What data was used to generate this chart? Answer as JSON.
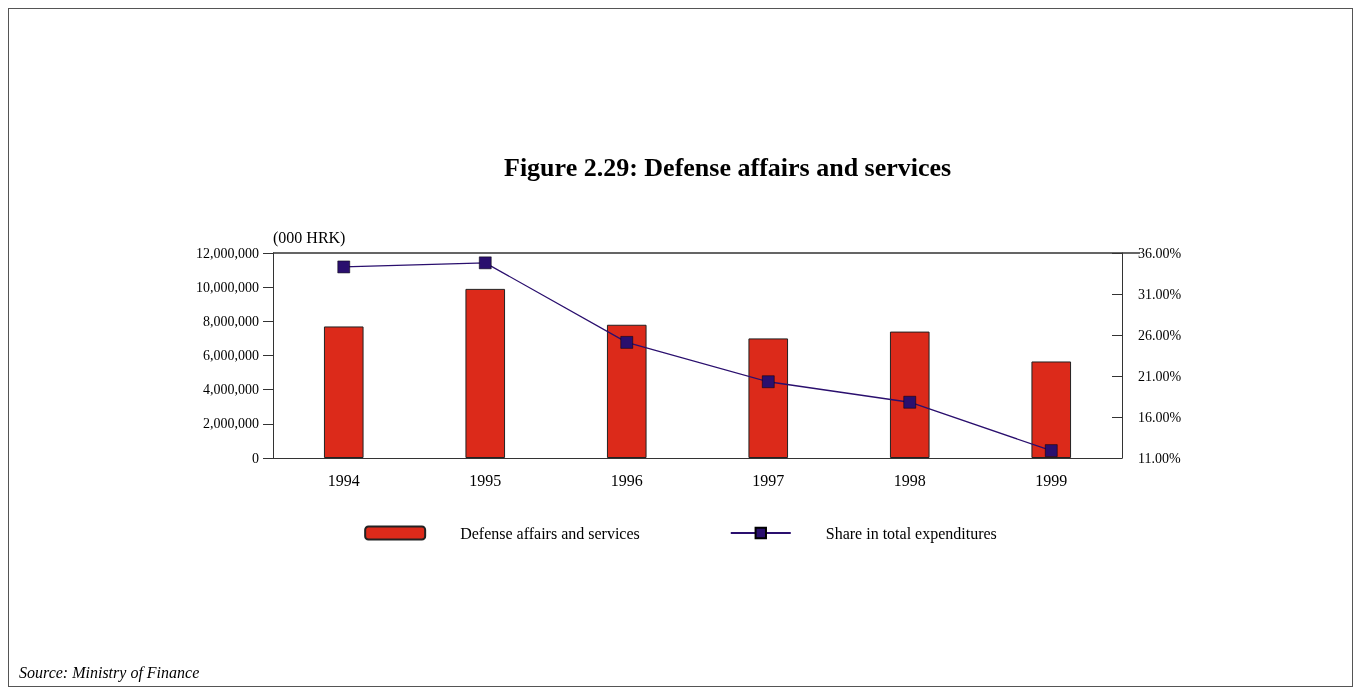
{
  "chart_data": {
    "type": "bar",
    "title": "Figure 2.29: Defense affairs and services",
    "ylabel": "(000 HRK)",
    "categories": [
      "1994",
      "1995",
      "1996",
      "1997",
      "1998",
      "1999"
    ],
    "series": [
      {
        "name": "Defense affairs and services",
        "color": "#dc2a1a",
        "values": [
          7700000,
          9900000,
          7800000,
          7000000,
          7400000,
          5650000
        ]
      },
      {
        "name": "Share in total expenditures",
        "type": "line",
        "axis": "y2",
        "color": "#2a0f6e",
        "marker": "square",
        "values": [
          34.3,
          34.8,
          25.1,
          20.3,
          17.8,
          11.9
        ]
      }
    ],
    "ylim": [
      0,
      12000000
    ],
    "yticks": [
      {
        "value": 0,
        "label": "0"
      },
      {
        "value": 2000000,
        "label": "2,000,000"
      },
      {
        "value": 4000000,
        "label": "4,000,000"
      },
      {
        "value": 6000000,
        "label": "6,000,000"
      },
      {
        "value": 8000000,
        "label": "8,000,000"
      },
      {
        "value": 10000000,
        "label": "10,000,000"
      },
      {
        "value": 12000000,
        "label": "12,000,000"
      }
    ],
    "y2lim": [
      11,
      36
    ],
    "y2ticks": [
      {
        "value": 11,
        "label": "11.00%"
      },
      {
        "value": 16,
        "label": "16.00%"
      },
      {
        "value": 21,
        "label": "21.00%"
      },
      {
        "value": 26,
        "label": "26.00%"
      },
      {
        "value": 31,
        "label": "31.00%"
      },
      {
        "value": 36,
        "label": "36.00%"
      }
    ],
    "legend": "bottom",
    "grid": false,
    "annotations": [
      "Source: Ministry of Finance"
    ]
  }
}
